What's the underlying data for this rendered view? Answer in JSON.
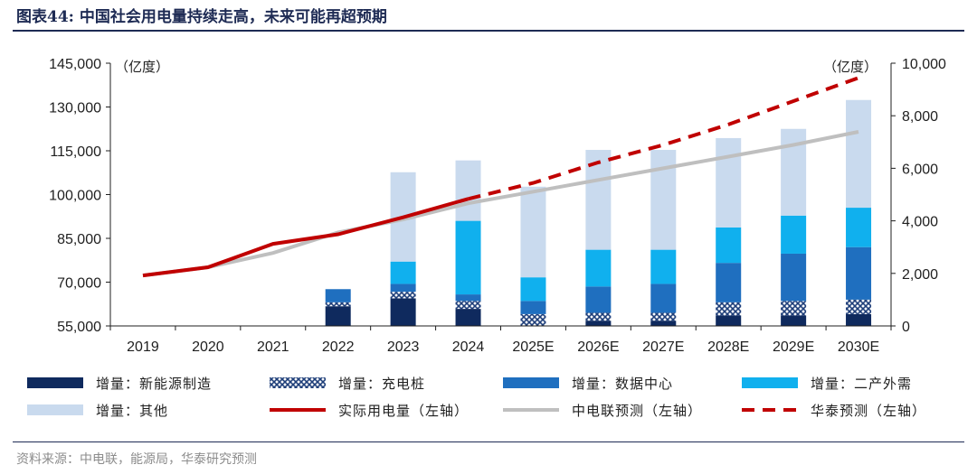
{
  "header": {
    "title": "图表44:   中国社会用电量持续走高，未来可能再超预期"
  },
  "source": "资料来源：中电联，能源局，华泰研究预测",
  "colors": {
    "manufacturing": "#0f2a5e",
    "charging": "#1f3f7a",
    "digital": "#1f6fbf",
    "tertiary": "#10b0ee",
    "other": "#c9daee",
    "actual": "#c00000",
    "cec_forecast": "#bfbfbf",
    "htsc_forecast": "#c00000"
  },
  "chart_data": {
    "type": "bar+line",
    "categories": [
      "2019",
      "2020",
      "2021",
      "2022",
      "2023",
      "2024",
      "2025E",
      "2026E",
      "2027E",
      "2028E",
      "2029E",
      "2030E"
    ],
    "left_axis": {
      "unit": "（亿度）",
      "min": 55000,
      "max": 145000,
      "ticks": [
        "55,000",
        "70,000",
        "85,000",
        "100,000",
        "115,000",
        "130,000",
        "145,000"
      ]
    },
    "right_axis": {
      "unit": "（亿度）",
      "min": 0,
      "max": 10000,
      "ticks": [
        "0",
        "2,000",
        "4,000",
        "6,000",
        "8,000",
        "10,000"
      ]
    },
    "bar_series": [
      {
        "name": "增量：新能源制造",
        "key": "manufacturing",
        "pattern": "solid",
        "values": [
          0,
          0,
          0,
          750,
          1050,
          650,
          0,
          200,
          200,
          400,
          400,
          450
        ]
      },
      {
        "name": "增量：充电桩",
        "key": "charging",
        "pattern": "cross",
        "values": [
          0,
          0,
          0,
          150,
          250,
          300,
          450,
          300,
          300,
          500,
          550,
          550
        ]
      },
      {
        "name": "增量：数据中心",
        "key": "digital",
        "pattern": "solid",
        "values": [
          0,
          0,
          0,
          500,
          300,
          250,
          500,
          1000,
          1100,
          1500,
          1800,
          2000
        ]
      },
      {
        "name": "增量：二产外需",
        "key": "tertiary",
        "pattern": "solid",
        "values": [
          0,
          0,
          0,
          0,
          850,
          2800,
          900,
          1400,
          1300,
          1350,
          1450,
          1500
        ]
      },
      {
        "name": "增量：其他",
        "key": "other",
        "pattern": "solid",
        "values": [
          0,
          0,
          0,
          0,
          3400,
          2300,
          3450,
          3800,
          3800,
          3400,
          3300,
          4100
        ]
      }
    ],
    "line_series": [
      {
        "name": "实际用电量（左轴）",
        "key": "actual",
        "style": "solid-thick",
        "axis": "left",
        "values": [
          72300,
          75100,
          83100,
          86400,
          92200,
          98500,
          null,
          null,
          null,
          null,
          null,
          null
        ]
      },
      {
        "name": "中电联预测（左轴）",
        "key": "cec_forecast",
        "style": "solid-thick",
        "axis": "left",
        "values": [
          72300,
          75100,
          80000,
          87000,
          91500,
          97000,
          101000,
          105000,
          109000,
          113000,
          117000,
          121500
        ]
      },
      {
        "name": "华泰预测（左轴）",
        "key": "htsc_forecast",
        "style": "dashed",
        "axis": "left",
        "values": [
          null,
          null,
          null,
          null,
          null,
          98500,
          104000,
          111000,
          117000,
          124000,
          132000,
          140000
        ]
      }
    ]
  }
}
